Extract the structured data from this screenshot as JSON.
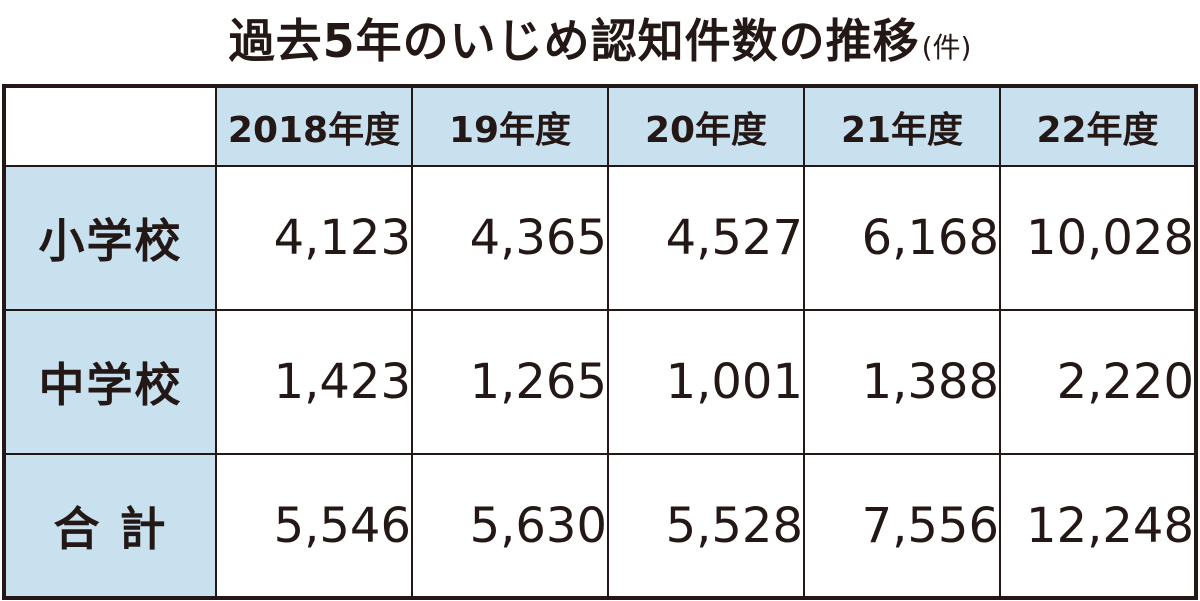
{
  "chart_data": {
    "type": "table",
    "title": "過去5年のいじめ認知件数の推移",
    "unit": "(件)",
    "columns": [
      "2018年度",
      "19年度",
      "20年度",
      "21年度",
      "22年度"
    ],
    "rows": [
      {
        "label": "小学校",
        "values": [
          "4,123",
          "4,365",
          "4,527",
          "6,168",
          "10,028"
        ]
      },
      {
        "label": "中学校",
        "values": [
          "1,423",
          "1,265",
          "1,001",
          "1,388",
          "2,220"
        ]
      },
      {
        "label": "合 計",
        "values": [
          "5,546",
          "5,630",
          "5,528",
          "7,556",
          "12,248"
        ]
      }
    ]
  },
  "colors": {
    "header_bg": "#c9e1ef",
    "border": "#231815",
    "text": "#231815"
  }
}
